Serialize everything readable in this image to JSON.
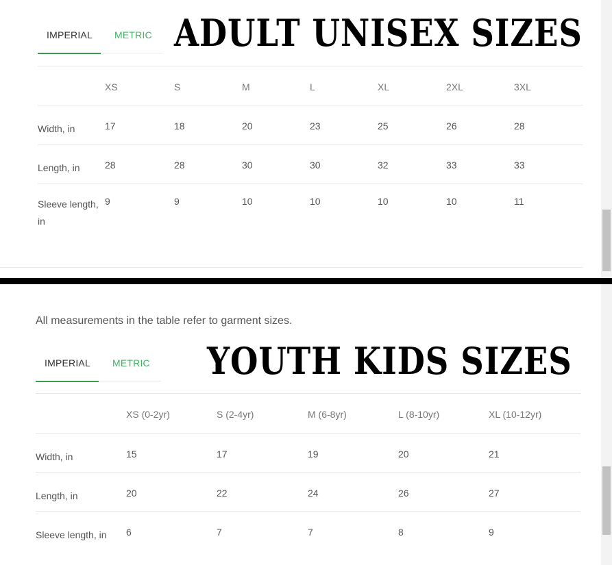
{
  "adult": {
    "tabs": {
      "imperial": "IMPERIAL",
      "metric": "METRIC"
    },
    "title": "ADULT UNISEX SIZES",
    "columns": [
      "XS",
      "S",
      "M",
      "L",
      "XL",
      "2XL",
      "3XL"
    ],
    "rows": [
      {
        "label": "Width, in",
        "values": [
          "17",
          "18",
          "20",
          "23",
          "25",
          "26",
          "28"
        ]
      },
      {
        "label": "Length, in",
        "values": [
          "28",
          "28",
          "30",
          "30",
          "32",
          "33",
          "33"
        ]
      },
      {
        "label": "Sleeve length, in",
        "values": [
          "9",
          "9",
          "10",
          "10",
          "10",
          "10",
          "11"
        ]
      }
    ]
  },
  "youth": {
    "note": "All measurements in the table refer to garment sizes.",
    "tabs": {
      "imperial": "IMPERIAL",
      "metric": "METRIC"
    },
    "title": "YOUTH KIDS SIZES",
    "columns": [
      "XS (0-2yr)",
      "S (2-4yr)",
      "M (6-8yr)",
      "L (8-10yr)",
      "XL (10-12yr)"
    ],
    "rows": [
      {
        "label": "Width, in",
        "values": [
          "15",
          "17",
          "19",
          "20",
          "21"
        ]
      },
      {
        "label": "Length, in",
        "values": [
          "20",
          "22",
          "24",
          "26",
          "27"
        ]
      },
      {
        "label": "Sleeve length, in",
        "values": [
          "6",
          "7",
          "7",
          "8",
          "9"
        ]
      }
    ]
  },
  "colors": {
    "accent": "#3cb55f",
    "tab_underline": "#3a9a4d"
  }
}
